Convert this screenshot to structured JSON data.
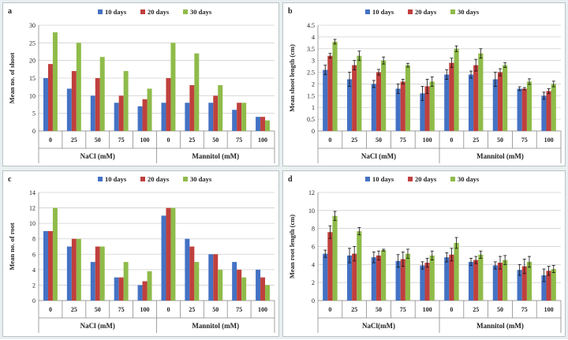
{
  "colors": {
    "d10": "#4472c4",
    "d20": "#c0403d",
    "d30": "#8fbb4a"
  },
  "chart_data": [
    {
      "type": "bar",
      "panel": "a",
      "groups": [
        "NaCl (mM)",
        "Mannitol (mM)"
      ],
      "categories": [
        "0",
        "25",
        "50",
        "75",
        "100",
        "0",
        "25",
        "50",
        "75",
        "100"
      ],
      "series": [
        {
          "name": "10 days",
          "values": [
            15,
            12,
            10,
            8,
            7,
            8,
            8,
            8,
            6,
            4
          ]
        },
        {
          "name": "20 days",
          "values": [
            19,
            17,
            15,
            10,
            9,
            15,
            13,
            10,
            8,
            4
          ]
        },
        {
          "name": "30 days",
          "values": [
            28,
            25,
            21,
            17,
            12,
            25,
            22,
            13,
            8,
            3
          ]
        }
      ],
      "ylabel": "Mean no. of shoot",
      "ylim": [
        0,
        30
      ],
      "yticks": [
        0,
        5,
        10,
        15,
        20,
        25,
        30
      ],
      "errors": false,
      "grid": true,
      "legend": "top"
    },
    {
      "type": "bar",
      "panel": "b",
      "groups": [
        "NaCl (mM)",
        "Mannitol (mM)"
      ],
      "categories": [
        "0",
        "25",
        "50",
        "75",
        "100",
        "0",
        "25",
        "50",
        "75",
        "100"
      ],
      "series": [
        {
          "name": "10 days",
          "values": [
            2.6,
            2.2,
            2.0,
            1.8,
            1.6,
            2.4,
            2.4,
            2.2,
            1.8,
            1.5
          ],
          "err": [
            0.2,
            0.3,
            0.15,
            0.2,
            0.3,
            0.2,
            0.15,
            0.3,
            0.08,
            0.15
          ]
        },
        {
          "name": "20 days",
          "values": [
            3.2,
            2.8,
            2.5,
            2.1,
            1.9,
            2.9,
            2.8,
            2.5,
            1.8,
            1.7
          ],
          "err": [
            0.1,
            0.2,
            0.12,
            0.1,
            0.3,
            0.2,
            0.25,
            0.15,
            0.05,
            0.1
          ]
        },
        {
          "name": "30 days",
          "values": [
            3.8,
            3.2,
            3.0,
            2.8,
            2.1,
            3.5,
            3.3,
            2.8,
            2.1,
            2.0
          ],
          "err": [
            0.1,
            0.2,
            0.15,
            0.08,
            0.2,
            0.12,
            0.2,
            0.1,
            0.12,
            0.12
          ]
        }
      ],
      "ylabel": "Mean shoot length (cm)",
      "ylim": [
        0,
        4.5
      ],
      "yticks": [
        0,
        0.5,
        1,
        1.5,
        2,
        2.5,
        3,
        3.5,
        4,
        4.5
      ],
      "errors": true,
      "grid": true,
      "legend": "top"
    },
    {
      "type": "bar",
      "panel": "c",
      "groups": [
        "NaCl (mM)",
        "Mannitol (mM)"
      ],
      "categories": [
        "0",
        "25",
        "50",
        "75",
        "100",
        "0",
        "25",
        "50",
        "75",
        "100"
      ],
      "series": [
        {
          "name": "10 days",
          "values": [
            9,
            7,
            5,
            3,
            2,
            11,
            8,
            6,
            5,
            4
          ]
        },
        {
          "name": "20 days",
          "values": [
            9,
            8,
            7,
            3,
            2.5,
            12,
            7,
            6,
            4,
            3
          ]
        },
        {
          "name": "30 days",
          "values": [
            12,
            8,
            7,
            5,
            3.8,
            12,
            5,
            4,
            3,
            2
          ]
        }
      ],
      "ylabel": "Mean no. of root",
      "ylim": [
        0,
        14
      ],
      "yticks": [
        0,
        2,
        4,
        6,
        8,
        10,
        12,
        14
      ],
      "errors": false,
      "grid": true,
      "legend": "top"
    },
    {
      "type": "bar",
      "panel": "d",
      "groups": [
        "NaCl(mM)",
        "Mannitol (mM)"
      ],
      "categories": [
        "0",
        "25",
        "50",
        "75",
        "100",
        "0",
        "25",
        "50",
        "75",
        "100"
      ],
      "series": [
        {
          "name": "10 days",
          "values": [
            5.2,
            5.0,
            4.8,
            4.4,
            3.9,
            4.8,
            4.3,
            3.9,
            3.4,
            2.8
          ],
          "err": [
            0.4,
            0.8,
            0.6,
            0.7,
            0.4,
            0.5,
            0.4,
            0.4,
            0.6,
            0.7
          ]
        },
        {
          "name": "20 days",
          "values": [
            7.6,
            5.2,
            5.0,
            4.6,
            4.2,
            5.1,
            4.5,
            4.2,
            3.8,
            3.3
          ],
          "err": [
            0.7,
            0.8,
            0.5,
            0.8,
            0.5,
            0.7,
            0.4,
            0.7,
            0.8,
            0.5
          ]
        },
        {
          "name": "30 days",
          "values": [
            9.4,
            7.7,
            5.6,
            5.2,
            5.0,
            6.4,
            5.1,
            4.5,
            4.3,
            3.5
          ],
          "err": [
            0.5,
            0.4,
            0.1,
            0.5,
            0.5,
            0.6,
            0.4,
            0.5,
            0.6,
            0.4
          ]
        }
      ],
      "ylabel": "Mean root length (cm)",
      "ylim": [
        0,
        12
      ],
      "yticks": [
        0,
        2,
        4,
        6,
        8,
        10,
        12
      ],
      "errors": true,
      "grid": true,
      "legend": "top"
    }
  ]
}
